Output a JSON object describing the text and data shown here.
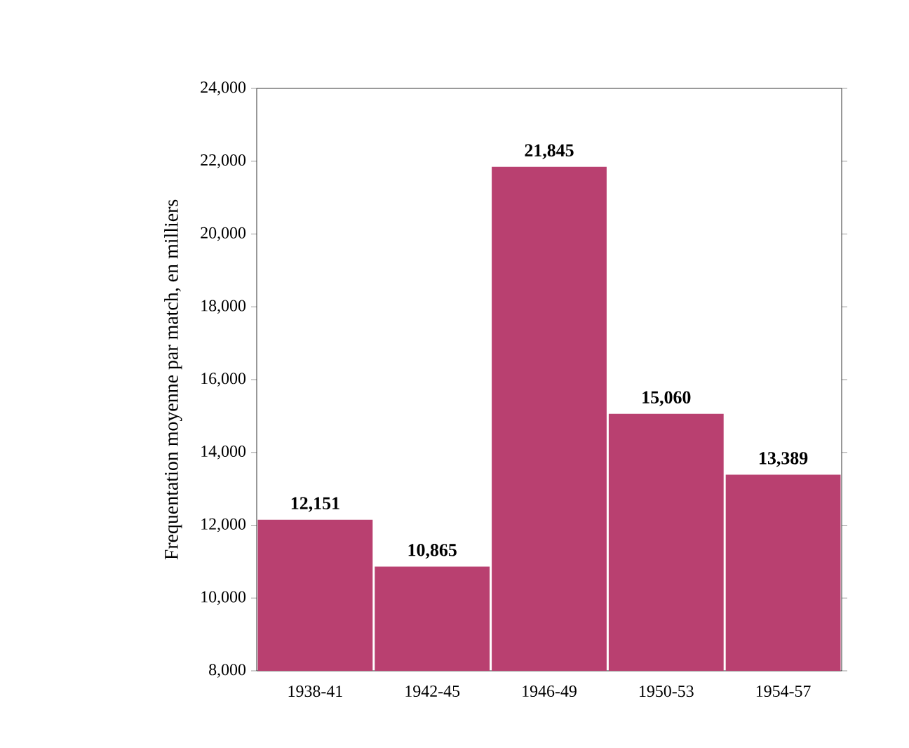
{
  "chart_data": {
    "type": "bar",
    "ylabel": "Frequentation moyenne par match, en milliers",
    "categories": [
      "1938-41",
      "1942-45",
      "1946-49",
      "1950-53",
      "1954-57"
    ],
    "values": [
      12151,
      10865,
      21845,
      15060,
      13389
    ],
    "value_labels": [
      "12,151",
      "10,865",
      "21,845",
      "15,060",
      "13,389"
    ],
    "color": "#b94070",
    "ylim": [
      8000,
      24000
    ],
    "yticks": [
      {
        "value": 8000,
        "label": "8,000"
      },
      {
        "value": 10000,
        "label": "10,000"
      },
      {
        "value": 12000,
        "label": "12,000"
      },
      {
        "value": 14000,
        "label": "14,000"
      },
      {
        "value": 16000,
        "label": "16,000"
      },
      {
        "value": 18000,
        "label": "18,000"
      },
      {
        "value": 20000,
        "label": "20,000"
      },
      {
        "value": 22000,
        "label": "22,000"
      },
      {
        "value": 24000,
        "label": "24,000"
      }
    ],
    "grid": false
  }
}
